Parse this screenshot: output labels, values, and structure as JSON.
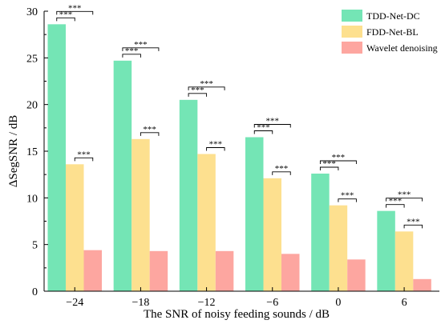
{
  "chart_data": {
    "type": "bar",
    "xlabel": "The SNR of noisy feeding sounds / dB",
    "ylabel": "ΔSegSNR / dB",
    "categories": [
      "−24",
      "−18",
      "−12",
      "−6",
      "0",
      "6"
    ],
    "ylim": [
      0,
      30
    ],
    "yticks": [
      "0",
      "5",
      "10",
      "15",
      "20",
      "25",
      "30"
    ],
    "grid": false,
    "legend_position": "top-right",
    "series": [
      {
        "name": "TDD-Net-DC",
        "color": "#74e5b5",
        "values": [
          28.6,
          24.7,
          20.5,
          16.5,
          12.6,
          8.6
        ]
      },
      {
        "name": "FDD-Net-BL",
        "color": "#fde08f",
        "values": [
          13.6,
          16.3,
          14.7,
          12.1,
          9.2,
          6.4
        ]
      },
      {
        "name": "Wavelet denoising",
        "color": "#fda6a0",
        "values": [
          4.4,
          4.3,
          4.3,
          4.0,
          3.4,
          1.3
        ]
      }
    ],
    "significance": {
      "label": "***",
      "pairs": [
        [
          0,
          1
        ],
        [
          0,
          2
        ],
        [
          1,
          2
        ]
      ]
    }
  }
}
